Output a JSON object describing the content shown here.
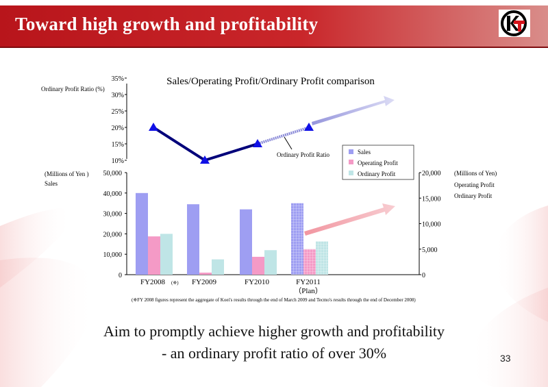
{
  "header": {
    "title": "Toward high growth and profitability"
  },
  "chart_data": {
    "type": "bar",
    "title": "Sales/Operating Profit/Ordinary Profit comparison",
    "categories": [
      "FY2008",
      "FY2009",
      "FY2010",
      "FY2011"
    ],
    "category_marks": [
      "(※)",
      "",
      "",
      "（Plan）"
    ],
    "series": [
      {
        "name": "Sales",
        "axis": "left",
        "color": "#9e9ef2",
        "values": [
          40000,
          34500,
          32000,
          35000
        ]
      },
      {
        "name": "Operating Profit",
        "axis": "right",
        "color": "#f49ac6",
        "values": [
          7500,
          400,
          3500,
          5000
        ]
      },
      {
        "name": "Ordinary Profit",
        "axis": "right",
        "color": "#bfe5e6",
        "values": [
          8000,
          3000,
          4800,
          6500
        ]
      }
    ],
    "ratio_line": {
      "name": "Ordinary Profit Ratio",
      "axis_label": "Ordinary Profit Ratio (%)",
      "unit": "%",
      "values": [
        20,
        10,
        15,
        20
      ],
      "ylim": [
        10,
        35
      ],
      "ticks": [
        "10%",
        "15%",
        "20%",
        "25%",
        "30%",
        "35%"
      ],
      "color": "#00007a",
      "marker_color": "#1010e6"
    },
    "left_axis": {
      "unit_label": "(Millions of Yen )",
      "series_label": "Sales",
      "ylim": [
        0,
        50000
      ],
      "ticks": [
        "0",
        "10,000",
        "20,000",
        "30,000",
        "40,000",
        "50,000"
      ]
    },
    "right_axis": {
      "unit_label": "(Millions of Yen)",
      "series_labels": [
        "Operating Profit",
        "Ordinary Profit"
      ],
      "ylim": [
        0,
        20000
      ],
      "ticks": [
        "0",
        "5,000",
        "10,000",
        "15,000",
        "20,000"
      ]
    },
    "legend": {
      "placement": "top-right",
      "items": [
        {
          "label": "Sales",
          "color": "#9e9ef2"
        },
        {
          "label": "Operating Profit",
          "color": "#f49ac6"
        },
        {
          "label": "Ordinary Profit",
          "color": "#bfe5e6"
        }
      ]
    },
    "footnote": "(※FY 2008 figures represent the aggregate of Koei's results through the end of March 2009 and Tecmo's results through the end of December 2008)"
  },
  "tagline": {
    "line1": "Aim to promptly achieve higher growth and profitability",
    "line2": "- an ordinary profit ratio of over 30%"
  },
  "page_number": "33",
  "colors": {
    "brand_red": "#c4171d",
    "accent_line": "#00007a"
  }
}
